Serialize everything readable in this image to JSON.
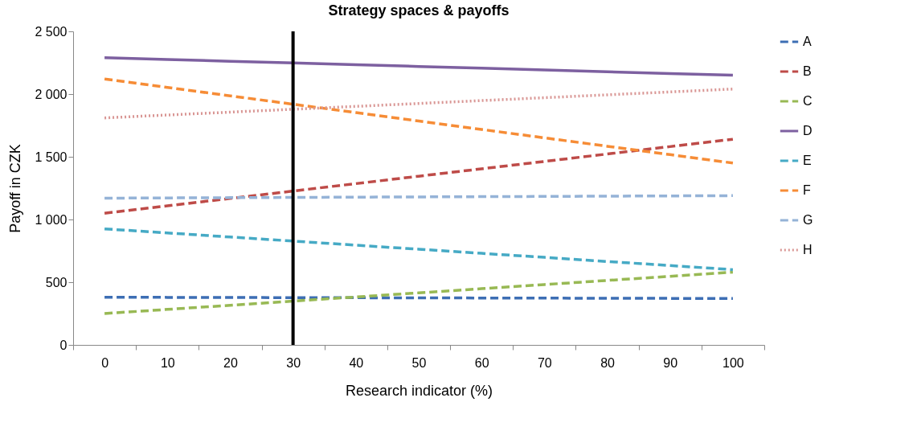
{
  "chart_data": {
    "type": "line",
    "title": "Strategy spaces & payoffs",
    "xlabel": "Research indicator (%)",
    "ylabel": "Payoff in CZK",
    "categories": [
      "0",
      "10",
      "20",
      "30",
      "40",
      "50",
      "60",
      "70",
      "80",
      "90",
      "100"
    ],
    "series": [
      {
        "name": "A",
        "color": "#3d6eb4",
        "line_style": "dashed",
        "values": [
          380,
          379,
          378,
          377,
          376,
          375,
          374,
          373,
          372,
          371,
          370
        ]
      },
      {
        "name": "B",
        "color": "#be4b48",
        "line_style": "dashed",
        "values": [
          1050,
          1109,
          1168,
          1227,
          1286,
          1345,
          1404,
          1463,
          1522,
          1581,
          1640
        ]
      },
      {
        "name": "C",
        "color": "#98b954",
        "line_style": "dashed",
        "values": [
          250,
          283,
          316,
          349,
          382,
          415,
          448,
          481,
          514,
          547,
          580
        ]
      },
      {
        "name": "D",
        "color": "#7d60a0",
        "line_style": "solid",
        "values": [
          2290,
          2276,
          2262,
          2248,
          2234,
          2220,
          2206,
          2192,
          2178,
          2164,
          2150
        ]
      },
      {
        "name": "E",
        "color": "#46aac5",
        "line_style": "dashed",
        "values": [
          925,
          893,
          860,
          828,
          795,
          763,
          730,
          698,
          665,
          633,
          600
        ]
      },
      {
        "name": "F",
        "color": "#f68c36",
        "line_style": "dashed",
        "values": [
          2120,
          2053,
          1986,
          1919,
          1852,
          1785,
          1718,
          1651,
          1584,
          1517,
          1450
        ]
      },
      {
        "name": "G",
        "color": "#95b3d7",
        "line_style": "dashed",
        "values": [
          1170,
          1172,
          1174,
          1176,
          1178,
          1180,
          1182,
          1184,
          1186,
          1188,
          1190
        ]
      },
      {
        "name": "H",
        "color": "#d99694",
        "line_style": "dotted",
        "values": [
          1810,
          1833,
          1856,
          1879,
          1902,
          1925,
          1948,
          1971,
          1994,
          2017,
          2040
        ]
      }
    ],
    "ylim": [
      0,
      2500
    ],
    "yticks": [
      0,
      500,
      {
        "value": 1000,
        "label": "1 000"
      },
      {
        "value": 1500,
        "label": "1 500"
      },
      {
        "value": 2000,
        "label": "2 000"
      },
      {
        "value": 2500,
        "label": "2 500"
      }
    ],
    "grid": false,
    "legend": "right",
    "ref_lines": [
      {
        "axis": "x",
        "value": "30",
        "label": null,
        "color": "#000000"
      }
    ]
  }
}
